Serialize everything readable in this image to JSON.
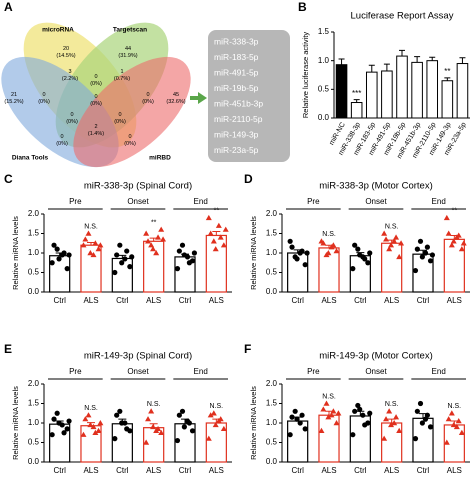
{
  "panels": [
    "A",
    "B",
    "C",
    "D",
    "E",
    "F"
  ],
  "venn": {
    "sets": [
      "microRNA",
      "Targetscan",
      "Diana Tools",
      "miRBD"
    ],
    "regions": [
      "20\n(14.5%)",
      "44\n(31.9%)",
      "21\n(15.2%)",
      "45\n(32.6%)",
      "3\n(2.2%)",
      "1\n(0.7%)",
      "0\n(0%)",
      "0\n(0%)",
      "0\n(0%)",
      "0\n(0%)",
      "0\n(0%)",
      "0\n(0%)",
      "0\n(0%)",
      "0\n(0%)",
      "2\n(1.4%)"
    ]
  },
  "mirna_list": [
    "miR-338-3p",
    "miR-183-5p",
    "miR-491-5p",
    "miR-19b-5p",
    "miR-451b-3p",
    "miR-2110-5p",
    "miR-149-3p",
    "miR-23a-5p"
  ],
  "chart_data": [
    {
      "type": "bar",
      "title": "Luciferase Report Assay",
      "y_label": "Relative luciferase activity",
      "categories": [
        "miR-NC",
        "miR-338-3p",
        "miR-183-5p",
        "miR-491-5p",
        "miR-19b-5p",
        "miR-451b-3p",
        "miR-2110-5p",
        "miR-149-3p",
        "miR-23a-5p"
      ],
      "values": [
        0.93,
        0.27,
        0.8,
        0.82,
        1.08,
        0.97,
        1.0,
        0.65,
        0.95
      ],
      "errors": [
        0.1,
        0.05,
        0.12,
        0.12,
        0.1,
        0.1,
        0.06,
        0.05,
        0.1
      ],
      "colors": [
        "#000000",
        "#ffffff",
        "#ffffff",
        "#ffffff",
        "#ffffff",
        "#ffffff",
        "#ffffff",
        "#ffffff",
        "#ffffff"
      ],
      "label_colors": [
        "#000000",
        "#e0301e",
        "#000000",
        "#000000",
        "#000000",
        "#000000",
        "#000000",
        "#e0301e",
        "#000000"
      ],
      "annotations": [
        {
          "category": "miR-338-3p",
          "text": "***"
        },
        {
          "category": "miR-149-3p",
          "text": "**"
        }
      ],
      "ylim": [
        0,
        1.5
      ],
      "yticks": [
        {
          "value": 0,
          "label": "0.0"
        },
        0.5,
        {
          "value": 1,
          "label": "1.0"
        },
        1.5
      ]
    },
    {
      "type": "dotbar",
      "title": "miR-338-3p (Spinal Cord)",
      "y_label": "Relative miRNA levels",
      "groups": [
        "Pre",
        "Onset",
        "End"
      ],
      "series": [
        {
          "name": "Ctrl",
          "color": "#000000",
          "values": [
            0.93,
            0.86,
            0.9
          ],
          "errors": [
            0.07,
            0.08,
            0.07
          ],
          "points": [
            [
              0.75,
              1.1,
              0.95,
              0.6,
              1.2,
              0.85,
              1.0,
              0.95
            ],
            [
              0.5,
              1.2,
              0.85,
              0.65,
              0.95,
              0.75,
              1.05,
              0.9
            ],
            [
              0.6,
              1.2,
              0.9,
              0.8,
              1.05,
              0.95,
              0.75,
              1.0
            ]
          ]
        },
        {
          "name": "ALS",
          "color": "#e0301e",
          "values": [
            1.2,
            1.3,
            1.45
          ],
          "errors": [
            0.07,
            0.08,
            0.1
          ],
          "points": [
            [
              1.2,
              1.5,
              0.95,
              1.1,
              1.35,
              1.0,
              1.25,
              1.2
            ],
            [
              1.5,
              1.2,
              1.0,
              1.6,
              1.3,
              1.1,
              1.4,
              1.35
            ],
            [
              1.9,
              1.3,
              1.7,
              1.2,
              1.5,
              1.1,
              1.4,
              1.6
            ]
          ]
        }
      ],
      "annotations": [
        "N.S.",
        "**",
        "**"
      ],
      "ylim": [
        0,
        2
      ],
      "yticks": [
        {
          "value": 0,
          "label": "0.0"
        },
        0.5,
        {
          "value": 1,
          "label": "1.0"
        },
        1.5,
        {
          "value": 2,
          "label": "2.0"
        }
      ]
    },
    {
      "type": "dotbar",
      "title": "miR-338-3p (Motor Cortex)",
      "y_label": "Relative miRNA levels",
      "groups": [
        "Pre",
        "Onset",
        "End"
      ],
      "series": [
        {
          "name": "Ctrl",
          "color": "#000000",
          "values": [
            1.0,
            0.93,
            0.97
          ],
          "errors": [
            0.08,
            0.08,
            0.1
          ],
          "points": [
            [
              1.3,
              0.9,
              1.0,
              0.7,
              1.15,
              0.85,
              1.05,
              1.0
            ],
            [
              0.6,
              1.1,
              0.9,
              0.75,
              1.2,
              0.95,
              0.85,
              1.0
            ],
            [
              0.55,
              1.3,
              1.0,
              0.8,
              1.1,
              0.9,
              1.15,
              0.95
            ]
          ]
        },
        {
          "name": "ALS",
          "color": "#e0301e",
          "values": [
            1.13,
            1.25,
            1.35
          ],
          "errors": [
            0.07,
            0.08,
            0.1
          ],
          "points": [
            [
              1.3,
              0.95,
              1.15,
              1.05,
              1.25,
              1.0,
              1.2
            ],
            [
              1.5,
              1.1,
              1.3,
              0.9,
              1.35,
              1.2,
              1.4,
              1.25
            ],
            [
              1.9,
              1.2,
              1.4,
              1.1,
              1.5,
              1.3,
              1.45,
              1.25
            ]
          ]
        }
      ],
      "annotations": [
        "N.S.",
        "N.S.",
        "**"
      ],
      "ylim": [
        0,
        2
      ],
      "yticks": [
        {
          "value": 0,
          "label": "0.0"
        },
        0.5,
        {
          "value": 1,
          "label": "1.0"
        },
        1.5,
        {
          "value": 2,
          "label": "2.0"
        }
      ]
    },
    {
      "type": "dotbar",
      "title": "miR-149-3p (Spinal Cord)",
      "y_label": "Relative miRNA levels",
      "groups": [
        "Pre",
        "Onset",
        "End"
      ],
      "series": [
        {
          "name": "Ctrl",
          "color": "#000000",
          "values": [
            0.97,
            0.98,
            0.98
          ],
          "errors": [
            0.08,
            0.12,
            0.12
          ],
          "points": [
            [
              0.7,
              1.25,
              0.95,
              0.85,
              1.1,
              1.0,
              0.75,
              1.05
            ],
            [
              0.6,
              1.3,
              1.0,
              0.8,
              1.2,
              1.0,
              0.85
            ],
            [
              0.55,
              1.3,
              1.05,
              0.8,
              1.2,
              0.9,
              1.0
            ]
          ]
        },
        {
          "name": "ALS",
          "color": "#e0301e",
          "values": [
            0.93,
            0.88,
            1.0
          ],
          "errors": [
            0.08,
            0.1,
            0.1
          ],
          "points": [
            [
              0.7,
              1.2,
              0.9,
              0.8,
              1.1,
              0.95,
              0.75,
              1.0
            ],
            [
              0.5,
              1.3,
              0.8,
              0.75,
              1.1,
              0.9,
              0.85
            ],
            [
              0.6,
              1.25,
              1.05,
              0.85,
              1.2,
              0.95,
              1.1
            ]
          ]
        }
      ],
      "annotations": [
        "N.S.",
        "N.S.",
        "N.S."
      ],
      "ylim": [
        0,
        2
      ],
      "yticks": [
        {
          "value": 0,
          "label": "0.0"
        },
        0.5,
        {
          "value": 1,
          "label": "1.0"
        },
        1.5,
        {
          "value": 2,
          "label": "2.0"
        }
      ]
    },
    {
      "type": "dotbar",
      "title": "miR-149-3p (Motor Cortex)",
      "y_label": "Relative miRNA levels",
      "groups": [
        "Pre",
        "Onset",
        "End"
      ],
      "series": [
        {
          "name": "Ctrl",
          "color": "#000000",
          "values": [
            1.05,
            1.18,
            1.12
          ],
          "errors": [
            0.1,
            0.12,
            0.12
          ],
          "points": [
            [
              0.7,
              1.3,
              1.0,
              0.85,
              1.15,
              1.1,
              1.2
            ],
            [
              0.7,
              1.45,
              1.2,
              1.0,
              1.3,
              1.35,
              0.95,
              1.25
            ],
            [
              0.6,
              1.5,
              1.1,
              0.9,
              1.3,
              1.0,
              1.2
            ]
          ]
        },
        {
          "name": "ALS",
          "color": "#e0301e",
          "values": [
            1.2,
            1.0,
            0.95
          ],
          "errors": [
            0.1,
            0.1,
            0.1
          ],
          "points": [
            [
              0.8,
              1.5,
              1.2,
              1.0,
              1.35,
              1.15,
              1.3,
              1.25
            ],
            [
              0.6,
              1.3,
              1.0,
              0.8,
              1.1,
              0.95,
              1.15
            ],
            [
              0.5,
              1.25,
              0.9,
              0.75,
              1.1,
              0.95,
              1.05
            ]
          ]
        }
      ],
      "annotations": [
        "N.S.",
        "N.S.",
        "N.S."
      ],
      "ylim": [
        0,
        2
      ],
      "yticks": [
        {
          "value": 0,
          "label": "0.0"
        },
        0.5,
        {
          "value": 1,
          "label": "1.0"
        },
        1.5,
        {
          "value": 2,
          "label": "2.0"
        }
      ]
    }
  ]
}
